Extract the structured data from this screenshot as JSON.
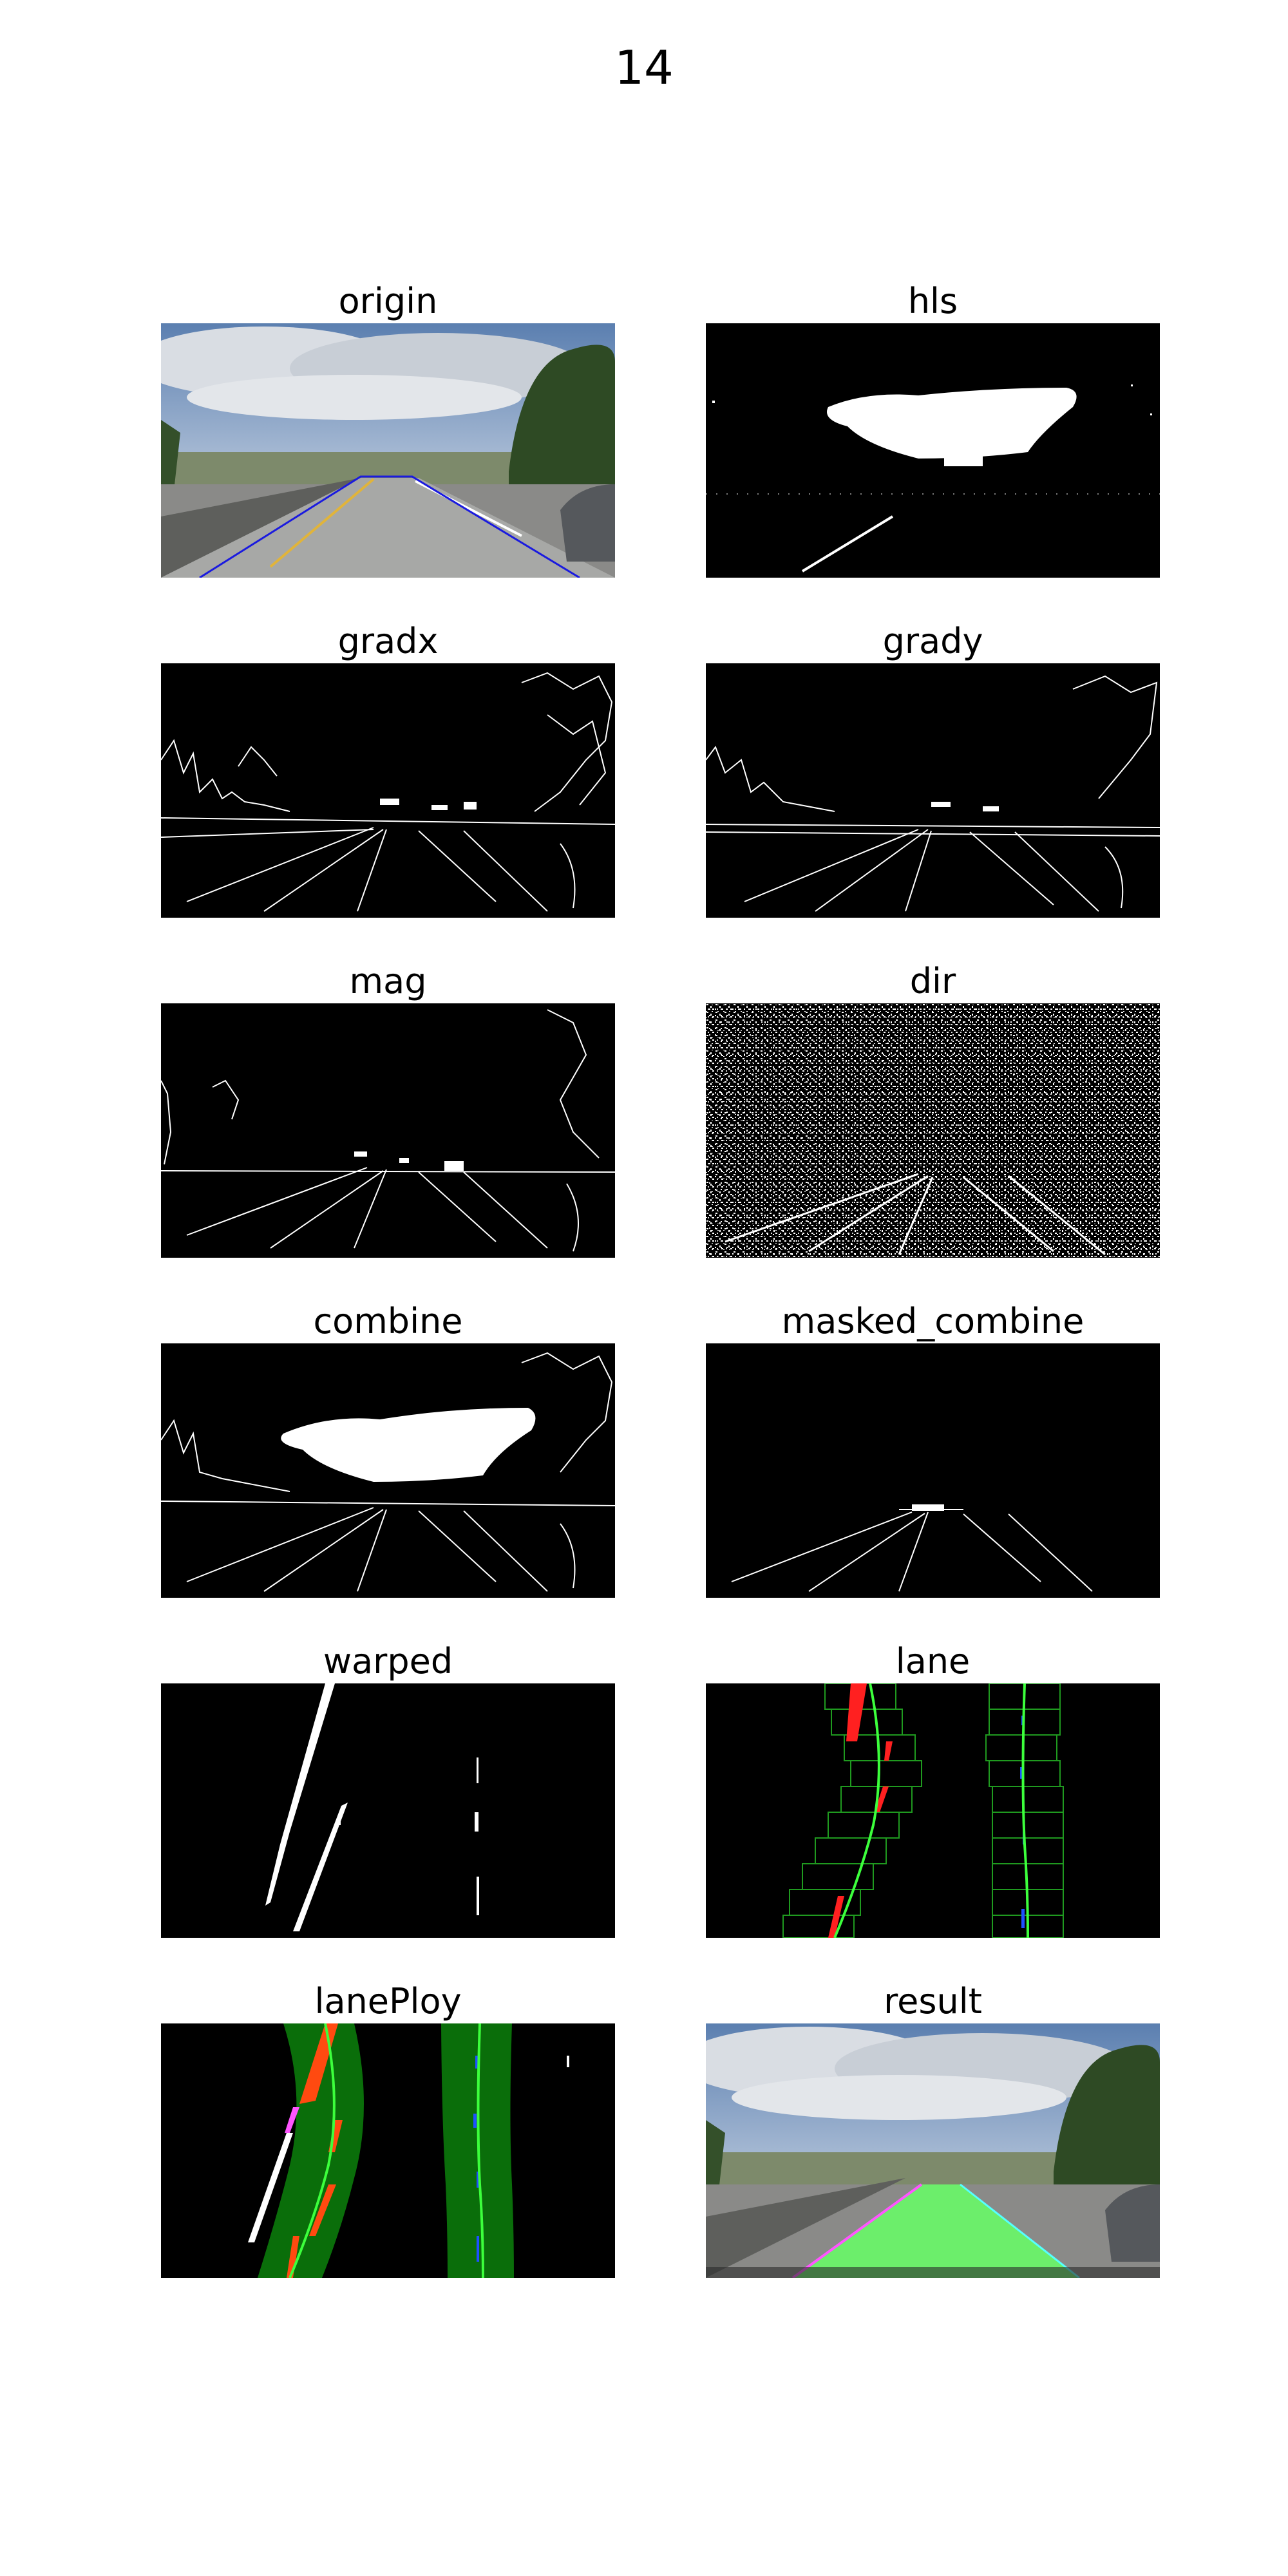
{
  "figure": {
    "title": "14",
    "panels": [
      {
        "id": "origin",
        "title": "origin"
      },
      {
        "id": "hls",
        "title": "hls"
      },
      {
        "id": "gradx",
        "title": "gradx"
      },
      {
        "id": "grady",
        "title": "grady"
      },
      {
        "id": "mag",
        "title": "mag"
      },
      {
        "id": "dir",
        "title": "dir"
      },
      {
        "id": "combine",
        "title": "combine"
      },
      {
        "id": "masked_combine",
        "title": "masked_combine"
      },
      {
        "id": "warped",
        "title": "warped"
      },
      {
        "id": "lane",
        "title": "lane"
      },
      {
        "id": "lanePloy",
        "title": "lanePloy"
      },
      {
        "id": "result",
        "title": "result"
      }
    ]
  },
  "colors": {
    "background": "#ffffff",
    "binary_fg": "#ffffff",
    "binary_bg": "#000000",
    "roi_line": "#1a1adf",
    "window_box": "#1f9a1f",
    "fit_line": "#3cff3c",
    "left_pixels": "#ff2020",
    "right_pixels": "#1e50ff",
    "lane_fill": "#0a6e0a",
    "overlay": "#66ff66"
  }
}
